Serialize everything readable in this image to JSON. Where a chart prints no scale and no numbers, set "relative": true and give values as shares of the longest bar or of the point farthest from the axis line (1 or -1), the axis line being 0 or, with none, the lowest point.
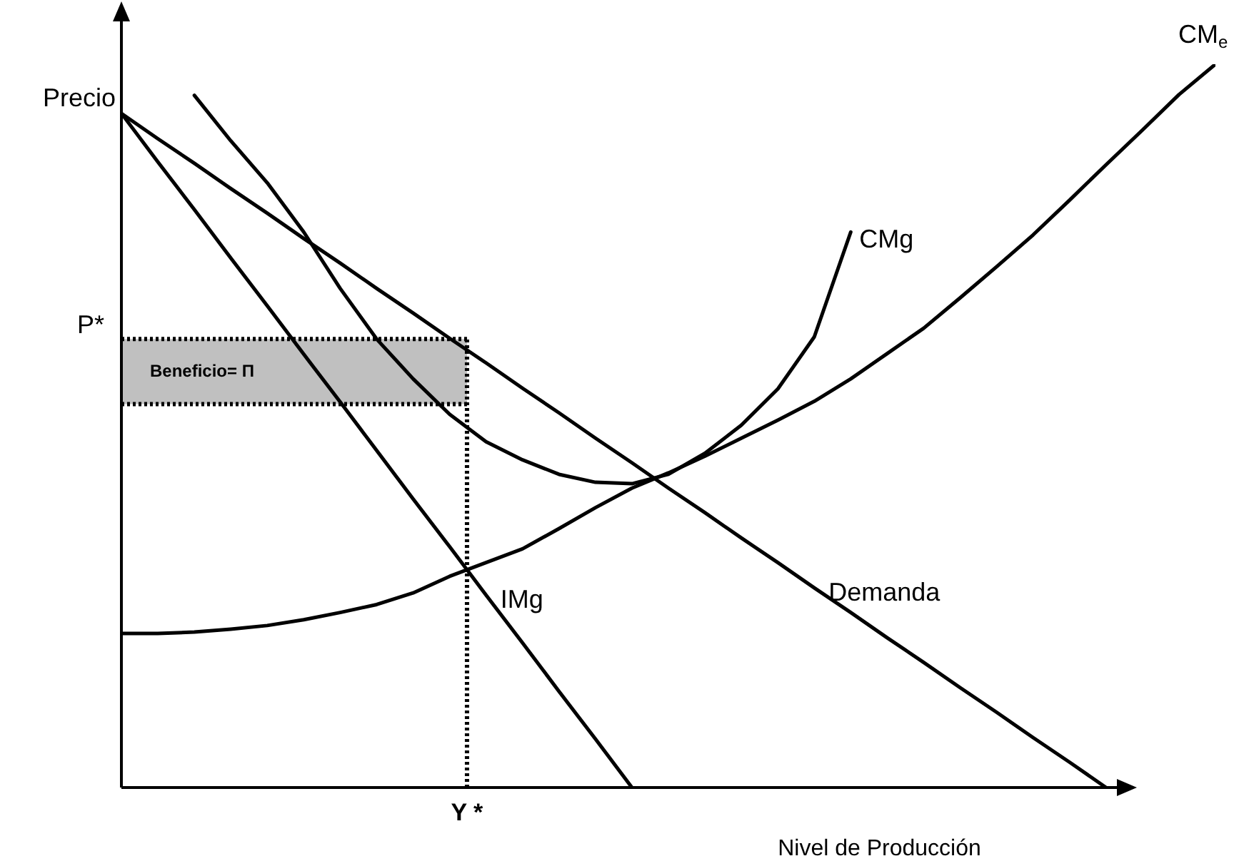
{
  "chart_data": {
    "type": "line",
    "relative": true,
    "ylabel": "Precio",
    "xlabel": "Nivel de Producción",
    "categories": [
      null,
      null,
      null,
      null,
      null,
      null,
      null,
      null,
      null,
      null,
      null,
      null,
      null,
      null,
      null,
      null,
      null,
      null,
      null,
      null,
      null,
      null,
      null,
      null,
      null,
      null,
      null,
      null,
      null,
      null,
      null
    ],
    "annotations": [
      "Y *"
    ],
    "series": [
      {
        "name": "Demanda",
        "color": "#000000",
        "values": [
          0.932,
          0.897,
          0.863,
          0.828,
          0.794,
          0.759,
          0.725,
          0.69,
          0.656,
          0.621,
          0.587,
          0.552,
          0.518,
          0.483,
          0.449,
          0.414,
          0.38,
          0.345,
          0.311,
          0.276,
          0.242,
          0.207,
          0.173,
          0.138,
          0.104,
          0.069,
          0.035,
          0,
          null,
          null,
          null
        ]
      },
      {
        "name": "IMg",
        "color": "#000000",
        "values": [
          0.932,
          0.865,
          0.799,
          0.732,
          0.666,
          0.599,
          0.533,
          0.466,
          0.399,
          0.333,
          0.266,
          0.2,
          0.133,
          0.067,
          0,
          null,
          null,
          null,
          null,
          null,
          null,
          null,
          null,
          null,
          null,
          null,
          null,
          null,
          null,
          null,
          null
        ]
      },
      {
        "name": "CMg",
        "color": "#000000",
        "values": [
          null,
          null,
          0.957,
          0.894,
          0.836,
          0.768,
          0.69,
          0.62,
          0.565,
          0.516,
          0.478,
          0.453,
          0.433,
          0.422,
          0.42,
          0.433,
          0.462,
          0.501,
          0.551,
          0.623,
          0.768,
          null,
          null,
          null,
          null,
          null,
          null,
          null,
          null,
          null,
          null
        ]
      },
      {
        "name": "CM$_{e}$",
        "color": "#000000",
        "values": [
          0.213,
          0.213,
          0.215,
          0.219,
          0.224,
          0.232,
          0.242,
          0.253,
          0.269,
          0.292,
          0.311,
          0.33,
          0.358,
          0.387,
          0.414,
          0.435,
          0.458,
          0.483,
          0.508,
          0.534,
          0.565,
          0.6,
          0.635,
          0.677,
          0.72,
          0.764,
          0.812,
          0.861,
          0.909,
          0.958,
          1
        ]
      }
    ],
    "bands": [
      {
        "axis": "y",
        "from": 0.53,
        "to": 0.62,
        "label": "Beneficio= Π",
        "color": "#c0c0c0"
      }
    ],
    "ref_lines": [
      {
        "axis": "y",
        "value": 0.62,
        "label": "P*",
        "line_style": "dotted"
      },
      {
        "axis": "y",
        "value": 0.53,
        "line_style": "dotted"
      }
    ],
    "legend": false,
    "marker": "none",
    "line_style": "solid"
  }
}
